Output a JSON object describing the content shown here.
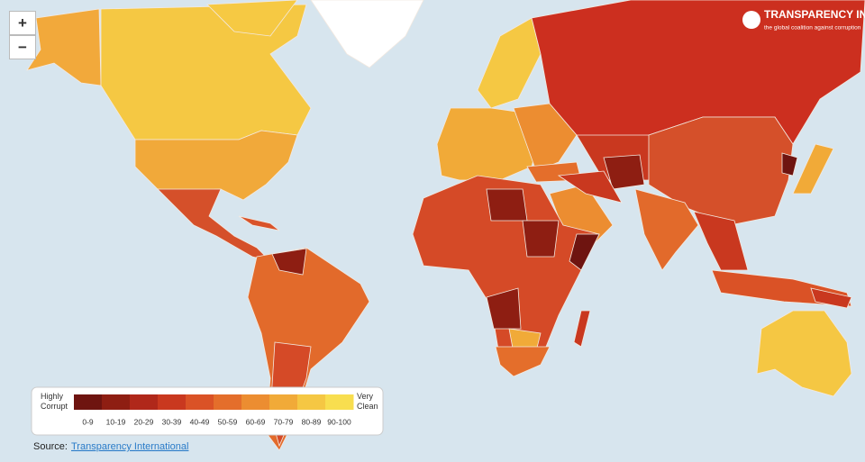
{
  "zoom": {
    "in": "+",
    "out": "−"
  },
  "logo": {
    "name": "TRANSPARENCY INTERNATIONAL",
    "tagline": "the global coalition against corruption"
  },
  "legend": {
    "low": "Highly Corrupt",
    "high": "Very Clean",
    "bins": [
      {
        "label": "0-9",
        "color": "#6e1410"
      },
      {
        "label": "10-19",
        "color": "#8e1e12"
      },
      {
        "label": "20-29",
        "color": "#b0281a"
      },
      {
        "label": "30-39",
        "color": "#c9381f"
      },
      {
        "label": "40-49",
        "color": "#da5226"
      },
      {
        "label": "50-59",
        "color": "#e46e2b"
      },
      {
        "label": "60-69",
        "color": "#ec8d31"
      },
      {
        "label": "70-79",
        "color": "#f1aa38"
      },
      {
        "label": "80-89",
        "color": "#f5c743"
      },
      {
        "label": "90-100",
        "color": "#f8de4f"
      }
    ]
  },
  "source": {
    "prefix": "Source:",
    "link": "Transparency International"
  }
}
